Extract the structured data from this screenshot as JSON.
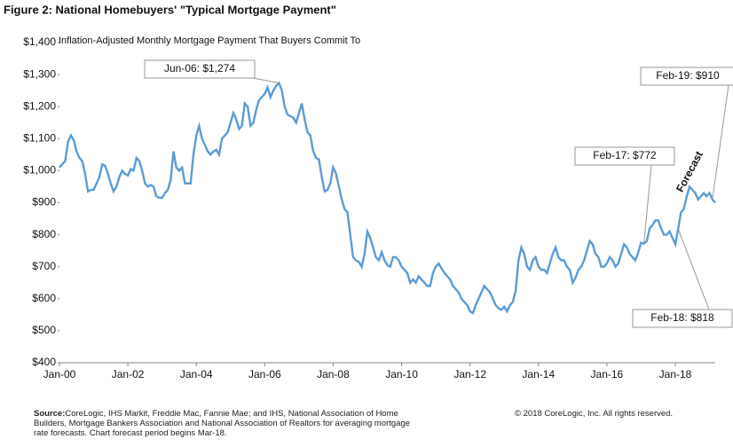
{
  "chart_data": {
    "type": "line",
    "title": "Figure 2: National Homebuyers' \"Typical Mortgage Payment\"",
    "y_label": "Inflation-Adjusted  Monthly Mortgage  Payment That  Buyers Commit  To",
    "forecast_label": "Forecast",
    "source_label": "Source:",
    "source_text": "CoreLogic, IHS Markit, Freddie Mac, Fannie Mae; and IHS,  National Association of Home Builders, Mortgage Bankers Association and National Association of Realtors for averaging mortgage rate forecasts. Chart forecast period begins Mar-18.",
    "copyright": "© 2018 CoreLogic, Inc. All rights reserved.",
    "annotations": [
      "Jun-06: $1,274",
      "Feb-17: $772",
      "Feb-18: $818",
      "Feb-19: $910"
    ],
    "categories": [
      "Jan-00",
      null,
      null,
      null,
      null,
      null,
      null,
      null,
      null,
      null,
      null,
      null,
      null,
      null,
      null,
      null,
      null,
      null,
      null,
      null,
      null,
      null,
      null,
      null,
      "Jan-02",
      null,
      null,
      null,
      null,
      null,
      null,
      null,
      null,
      null,
      null,
      null,
      null,
      null,
      null,
      null,
      null,
      null,
      null,
      null,
      null,
      null,
      null,
      null,
      "Jan-04",
      null,
      null,
      null,
      null,
      null,
      null,
      null,
      null,
      null,
      null,
      null,
      null,
      null,
      null,
      null,
      null,
      null,
      null,
      null,
      null,
      null,
      null,
      null,
      "Jan-06",
      null,
      null,
      null,
      null,
      null,
      null,
      null,
      null,
      null,
      null,
      null,
      null,
      null,
      null,
      null,
      null,
      null,
      null,
      null,
      null,
      null,
      null,
      null,
      "Jan-08",
      null,
      null,
      null,
      null,
      null,
      null,
      null,
      null,
      null,
      null,
      null,
      null,
      null,
      null,
      null,
      null,
      null,
      null,
      null,
      null,
      null,
      null,
      null,
      "Jan-10",
      null,
      null,
      null,
      null,
      null,
      null,
      null,
      null,
      null,
      null,
      null,
      null,
      null,
      null,
      null,
      null,
      null,
      null,
      null,
      null,
      null,
      null,
      null,
      "Jan-12",
      null,
      null,
      null,
      null,
      null,
      null,
      null,
      null,
      null,
      null,
      null,
      null,
      null,
      null,
      null,
      null,
      null,
      null,
      null,
      null,
      null,
      null,
      null,
      "Jan-14",
      null,
      null,
      null,
      null,
      null,
      null,
      null,
      null,
      null,
      null,
      null,
      null,
      null,
      null,
      null,
      null,
      null,
      null,
      null,
      null,
      null,
      null,
      null,
      "Jan-16",
      null,
      null,
      null,
      null,
      null,
      null,
      null,
      null,
      null,
      null,
      null,
      null,
      null,
      null,
      null,
      null,
      null,
      null,
      null,
      null,
      null,
      null,
      null,
      "Jan-18",
      null,
      null,
      null,
      null,
      null,
      null,
      null,
      null,
      null,
      null,
      null,
      null,
      null,
      null
    ],
    "series": [
      {
        "color": "#5b9bd5",
        "values": [
          1010,
          1020,
          1030,
          1090,
          1110,
          1095,
          1060,
          1040,
          1030,
          990,
          935,
          940,
          940,
          960,
          980,
          1020,
          1015,
          990,
          960,
          935,
          950,
          980,
          1000,
          990,
          985,
          1005,
          1000,
          1040,
          1030,
          1000,
          960,
          950,
          955,
          950,
          920,
          915,
          915,
          930,
          940,
          970,
          1060,
          1010,
          1000,
          1010,
          960,
          960,
          960,
          1050,
          1110,
          1140,
          1100,
          1080,
          1060,
          1050,
          1060,
          1065,
          1050,
          1100,
          1110,
          1120,
          1150,
          1180,
          1160,
          1130,
          1140,
          1210,
          1200,
          1140,
          1150,
          1190,
          1220,
          1230,
          1240,
          1260,
          1230,
          1250,
          1265,
          1274,
          1250,
          1200,
          1175,
          1170,
          1165,
          1150,
          1180,
          1210,
          1160,
          1120,
          1110,
          1060,
          1040,
          1035,
          980,
          935,
          940,
          960,
          1010,
          990,
          950,
          910,
          880,
          870,
          800,
          730,
          720,
          715,
          700,
          740,
          810,
          790,
          760,
          730,
          720,
          745,
          720,
          705,
          700,
          730,
          730,
          720,
          700,
          690,
          680,
          650,
          660,
          650,
          670,
          660,
          650,
          640,
          640,
          680,
          700,
          710,
          695,
          680,
          670,
          660,
          640,
          630,
          620,
          600,
          590,
          580,
          560,
          555,
          580,
          600,
          620,
          640,
          630,
          620,
          600,
          580,
          570,
          565,
          575,
          560,
          580,
          590,
          625,
          720,
          760,
          740,
          700,
          690,
          720,
          730,
          700,
          690,
          690,
          680,
          710,
          740,
          760,
          730,
          720,
          720,
          700,
          690,
          650,
          665,
          690,
          700,
          720,
          750,
          780,
          770,
          740,
          730,
          700,
          700,
          710,
          730,
          720,
          700,
          710,
          740,
          770,
          760,
          740,
          730,
          720,
          745,
          775,
          772,
          780,
          820,
          830,
          845,
          845,
          820,
          800,
          800,
          810,
          790,
          770,
          818,
          870,
          880,
          920,
          950,
          940,
          930,
          910,
          920,
          930,
          920,
          930,
          910,
          900
        ]
      }
    ],
    "ylim": [
      400,
      1400
    ],
    "yticks": [
      {
        "value": 400,
        "label": "$400"
      },
      {
        "value": 500,
        "label": "$500"
      },
      {
        "value": 600,
        "label": "$600"
      },
      {
        "value": 700,
        "label": "$700"
      },
      {
        "value": 800,
        "label": "$800"
      },
      {
        "value": 900,
        "label": "$900"
      },
      {
        "value": 1000,
        "label": "$1,000"
      },
      {
        "value": 1100,
        "label": "$1,100"
      },
      {
        "value": 1200,
        "label": "$1,200"
      },
      {
        "value": 1300,
        "label": "$1,300"
      },
      {
        "value": 1400,
        "label": "$1,400"
      }
    ],
    "grid": false
  }
}
